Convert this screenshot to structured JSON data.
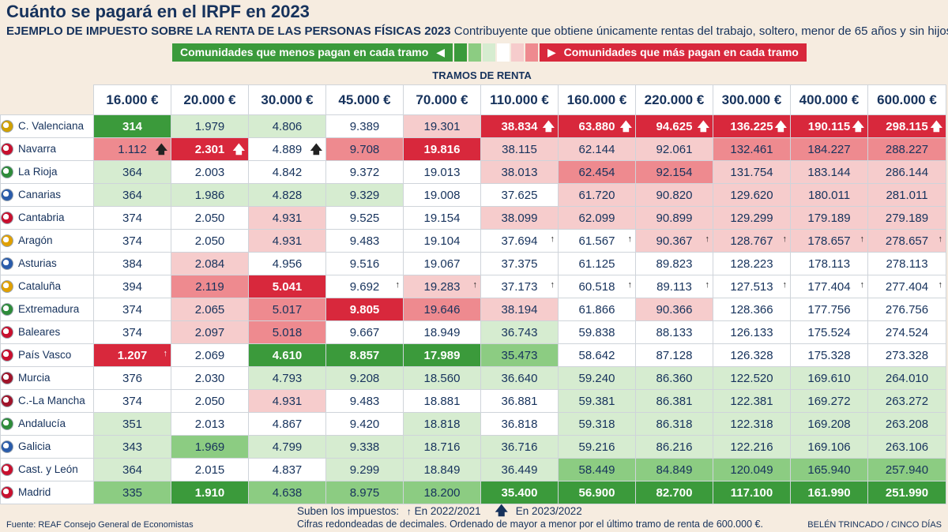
{
  "header": {
    "title": "Cuánto se pagará en el IRPF en 2023",
    "subtitle_bold": "EJEMPLO DE IMPUESTO SOBRE LA RENTA DE LAS PERSONAS FÍSICAS 2023",
    "subtitle_rest": " Contribuyente que obtiene únicamente rentas del trabajo, soltero, menor de 65 años y sin hijos."
  },
  "legend": {
    "less": "Comunidades que menos pagan en cada tramo",
    "less_glyph": "◀",
    "more": "Comunidades que más pagan en cada tramo",
    "more_glyph": "▶",
    "less_color": "#3b9a3b",
    "more_color": "#d8283c",
    "swatches": [
      "#3b9a3b",
      "#8ccc82",
      "#d6ecd0",
      "#ffffff",
      "#f6cccc",
      "#ee8a8f"
    ]
  },
  "axis_label": "TRAMOS DE RENTA",
  "chart_data": {
    "type": "table",
    "title": "Cuánto se pagará en el IRPF en 2023",
    "columns": [
      "16.000 €",
      "20.000 €",
      "30.000 €",
      "45.000 €",
      "70.000 €",
      "110.000 €",
      "160.000 €",
      "220.000 €",
      "300.000 €",
      "400.000 €",
      "600.000 €"
    ],
    "rows": [
      {
        "region": "C. Valenciana",
        "flag": "#d0a000",
        "values": [
          "314",
          "1.979",
          "4.806",
          "9.389",
          "19.301",
          "38.834",
          "63.880",
          "94.625",
          "136.225",
          "190.115",
          "298.115"
        ],
        "shade": [
          "G3",
          "G1",
          "G1",
          "W",
          "R1",
          "R3",
          "R3",
          "R3",
          "R3",
          "R3",
          "R3"
        ],
        "arrows": [
          "",
          "",
          "",
          "",
          "",
          "B",
          "B",
          "B",
          "B",
          "B",
          "B"
        ]
      },
      {
        "region": "Navarra",
        "flag": "#c8102e",
        "values": [
          "1.112",
          "2.301",
          "4.889",
          "9.708",
          "19.816",
          "38.115",
          "62.144",
          "92.061",
          "132.461",
          "184.227",
          "288.227"
        ],
        "shade": [
          "R2",
          "R3",
          "W",
          "R2",
          "R3",
          "R1",
          "R1",
          "R1",
          "R2",
          "R2",
          "R2"
        ],
        "arrows": [
          "B",
          "B",
          "B",
          "",
          "",
          "",
          "",
          "",
          "",
          "",
          ""
        ]
      },
      {
        "region": "La Rioja",
        "flag": "#2e8b3a",
        "values": [
          "364",
          "2.003",
          "4.842",
          "9.372",
          "19.013",
          "38.013",
          "62.454",
          "92.154",
          "131.754",
          "183.144",
          "286.144"
        ],
        "shade": [
          "G1",
          "W",
          "W",
          "W",
          "W",
          "R1",
          "R2",
          "R2",
          "R1",
          "R1",
          "R1"
        ],
        "arrows": [
          "",
          "",
          "",
          "",
          "",
          "",
          "",
          "",
          "",
          "",
          ""
        ]
      },
      {
        "region": "Canarias",
        "flag": "#2a5caa",
        "values": [
          "364",
          "1.986",
          "4.828",
          "9.329",
          "19.008",
          "37.625",
          "61.720",
          "90.820",
          "129.620",
          "180.011",
          "281.011"
        ],
        "shade": [
          "G1",
          "G1",
          "G1",
          "G1",
          "W",
          "W",
          "R1",
          "R1",
          "R1",
          "R1",
          "R1"
        ],
        "arrows": [
          "",
          "",
          "",
          "",
          "",
          "",
          "",
          "",
          "",
          "",
          ""
        ]
      },
      {
        "region": "Cantabria",
        "flag": "#c8102e",
        "values": [
          "374",
          "2.050",
          "4.931",
          "9.525",
          "19.154",
          "38.099",
          "62.099",
          "90.899",
          "129.299",
          "179.189",
          "279.189"
        ],
        "shade": [
          "W",
          "W",
          "R1",
          "W",
          "W",
          "R1",
          "R1",
          "R1",
          "R1",
          "R1",
          "R1"
        ],
        "arrows": [
          "",
          "",
          "",
          "",
          "",
          "",
          "",
          "",
          "",
          "",
          ""
        ]
      },
      {
        "region": "Aragón",
        "flag": "#e0a000",
        "values": [
          "374",
          "2.050",
          "4.931",
          "9.483",
          "19.104",
          "37.694",
          "61.567",
          "90.367",
          "128.767",
          "178.657",
          "278.657"
        ],
        "shade": [
          "W",
          "W",
          "R1",
          "W",
          "W",
          "W",
          "W",
          "R1",
          "R1",
          "R1",
          "R1"
        ],
        "arrows": [
          "",
          "",
          "",
          "",
          "",
          "S",
          "S",
          "S",
          "S",
          "S",
          "S"
        ]
      },
      {
        "region": "Asturias",
        "flag": "#2a5caa",
        "values": [
          "384",
          "2.084",
          "4.956",
          "9.516",
          "19.067",
          "37.375",
          "61.125",
          "89.823",
          "128.223",
          "178.113",
          "278.113"
        ],
        "shade": [
          "W",
          "R1",
          "W",
          "W",
          "W",
          "W",
          "W",
          "W",
          "W",
          "W",
          "W"
        ],
        "arrows": [
          "",
          "",
          "",
          "",
          "",
          "",
          "",
          "",
          "",
          "",
          ""
        ]
      },
      {
        "region": "Cataluña",
        "flag": "#e0a000",
        "values": [
          "394",
          "2.119",
          "5.041",
          "9.692",
          "19.283",
          "37.173",
          "60.518",
          "89.113",
          "127.513",
          "177.404",
          "277.404"
        ],
        "shade": [
          "W",
          "R2",
          "R3",
          "W",
          "R1",
          "W",
          "W",
          "W",
          "W",
          "W",
          "W"
        ],
        "arrows": [
          "",
          "",
          "",
          "S",
          "S",
          "S",
          "S",
          "S",
          "S",
          "S",
          "S"
        ]
      },
      {
        "region": "Extremadura",
        "flag": "#2e8b3a",
        "values": [
          "374",
          "2.065",
          "5.017",
          "9.805",
          "19.646",
          "38.194",
          "61.866",
          "90.366",
          "128.366",
          "177.756",
          "276.756"
        ],
        "shade": [
          "W",
          "R1",
          "R2",
          "R3",
          "R2",
          "R1",
          "W",
          "R1",
          "W",
          "W",
          "W"
        ],
        "arrows": [
          "",
          "",
          "",
          "",
          "",
          "",
          "",
          "",
          "",
          "",
          ""
        ]
      },
      {
        "region": "Baleares",
        "flag": "#c8102e",
        "values": [
          "374",
          "2.097",
          "5.018",
          "9.667",
          "18.949",
          "36.743",
          "59.838",
          "88.133",
          "126.133",
          "175.524",
          "274.524"
        ],
        "shade": [
          "W",
          "R1",
          "R2",
          "W",
          "W",
          "G1",
          "W",
          "W",
          "W",
          "W",
          "W"
        ],
        "arrows": [
          "",
          "",
          "",
          "",
          "",
          "",
          "",
          "",
          "",
          "",
          ""
        ]
      },
      {
        "region": "País Vasco",
        "flag": "#c8102e",
        "values": [
          "1.207",
          "2.069",
          "4.610",
          "8.857",
          "17.989",
          "35.473",
          "58.642",
          "87.128",
          "126.328",
          "175.328",
          "273.328"
        ],
        "shade": [
          "R3",
          "W",
          "G3",
          "G3",
          "G3",
          "G2",
          "W",
          "W",
          "W",
          "W",
          "W"
        ],
        "arrows": [
          "S",
          "",
          "",
          "",
          "",
          "",
          "",
          "",
          "",
          "",
          ""
        ]
      },
      {
        "region": "Murcia",
        "flag": "#a0142a",
        "values": [
          "376",
          "2.030",
          "4.793",
          "9.208",
          "18.560",
          "36.640",
          "59.240",
          "86.360",
          "122.520",
          "169.610",
          "264.010"
        ],
        "shade": [
          "W",
          "W",
          "G1",
          "G1",
          "G1",
          "G1",
          "G1",
          "G1",
          "G1",
          "G1",
          "G1"
        ],
        "arrows": [
          "",
          "",
          "",
          "",
          "",
          "",
          "",
          "",
          "",
          "",
          ""
        ]
      },
      {
        "region": "C.-La Mancha",
        "flag": "#a0142a",
        "values": [
          "374",
          "2.050",
          "4.931",
          "9.483",
          "18.881",
          "36.881",
          "59.381",
          "86.381",
          "122.381",
          "169.272",
          "263.272"
        ],
        "shade": [
          "W",
          "W",
          "R1",
          "W",
          "W",
          "W",
          "G1",
          "G1",
          "G1",
          "G1",
          "G1"
        ],
        "arrows": [
          "",
          "",
          "",
          "",
          "",
          "",
          "",
          "",
          "",
          "",
          ""
        ]
      },
      {
        "region": "Andalucía",
        "flag": "#2e8b3a",
        "values": [
          "351",
          "2.013",
          "4.867",
          "9.420",
          "18.818",
          "36.818",
          "59.318",
          "86.318",
          "122.318",
          "169.208",
          "263.208"
        ],
        "shade": [
          "G1",
          "W",
          "W",
          "W",
          "G1",
          "W",
          "G1",
          "G1",
          "G1",
          "G1",
          "G1"
        ],
        "arrows": [
          "",
          "",
          "",
          "",
          "",
          "",
          "",
          "",
          "",
          "",
          ""
        ]
      },
      {
        "region": "Galicia",
        "flag": "#2a5caa",
        "values": [
          "343",
          "1.969",
          "4.799",
          "9.338",
          "18.716",
          "36.716",
          "59.216",
          "86.216",
          "122.216",
          "169.106",
          "263.106"
        ],
        "shade": [
          "G1",
          "G2",
          "G1",
          "G1",
          "G1",
          "G1",
          "G1",
          "G1",
          "G1",
          "G1",
          "G1"
        ],
        "arrows": [
          "",
          "",
          "",
          "",
          "",
          "",
          "",
          "",
          "",
          "",
          ""
        ]
      },
      {
        "region": "Cast. y León",
        "flag": "#c8102e",
        "values": [
          "364",
          "2.015",
          "4.837",
          "9.299",
          "18.849",
          "36.449",
          "58.449",
          "84.849",
          "120.049",
          "165.940",
          "257.940"
        ],
        "shade": [
          "G1",
          "W",
          "W",
          "G1",
          "G1",
          "G1",
          "G2",
          "G2",
          "G2",
          "G2",
          "G2"
        ],
        "arrows": [
          "",
          "",
          "",
          "",
          "",
          "",
          "",
          "",
          "",
          "",
          ""
        ]
      },
      {
        "region": "Madrid",
        "flag": "#c8102e",
        "values": [
          "335",
          "1.910",
          "4.638",
          "8.975",
          "18.200",
          "35.400",
          "56.900",
          "82.700",
          "117.100",
          "161.990",
          "251.990"
        ],
        "shade": [
          "G2",
          "G3",
          "G2",
          "G2",
          "G2",
          "G3",
          "G3",
          "G3",
          "G3",
          "G3",
          "G3"
        ],
        "arrows": [
          "",
          "",
          "",
          "",
          "",
          "",
          "",
          "",
          "",
          "",
          ""
        ]
      }
    ]
  },
  "shade_colors": {
    "W": "#ffffff",
    "G1": "#d6ecd0",
    "G2": "#8ccc82",
    "G3": "#3b9a3b",
    "R1": "#f6cccc",
    "R2": "#ee8a8f",
    "R3": "#d8283c"
  },
  "footer": {
    "arrows_label": "Suben los impuestos:",
    "small_arrow": "↑",
    "small_label": "En 2022/2021",
    "big_arrow": "🡅",
    "big_label": "En 2023/2022",
    "note": "Cifras redondeadas de decimales. Ordenado de mayor a menor por el último tramo de renta de 600.000 €.",
    "source": "Fuente: REAF Consejo General de Economistas",
    "credit": "BELÉN TRINCADO / CINCO DÍAS"
  }
}
